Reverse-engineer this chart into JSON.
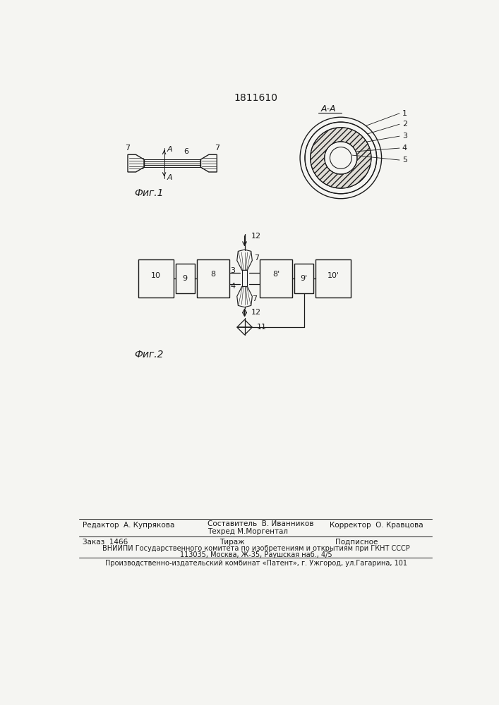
{
  "title": "1811610",
  "fig1_label": "Фиг.1",
  "fig2_label": "Фиг.2",
  "aa_label": "A-A",
  "background": "#f5f5f2",
  "line_color": "#1a1a1a",
  "footer": {
    "line1_left": "Редактор  А. Купрякова",
    "line1_mid1": "Составитель  В. Иванников",
    "line1_mid2": "Техред М.Моргентал",
    "line1_right": "Корректор  О. Кравцова",
    "line2_left": "Заказ  1466",
    "line2_mid": "Тираж",
    "line2_right": "Подписное",
    "line3": "ВНИИПИ Государственного комитета по изобретениям и открытиям при ГКНТ СССР",
    "line4": "113035, Москва, Ж-35, Раушская наб., 4/5",
    "line5": "Производственно-издательский комбинат «Патент», г. Ужгород, ул.Гагарина, 101"
  }
}
